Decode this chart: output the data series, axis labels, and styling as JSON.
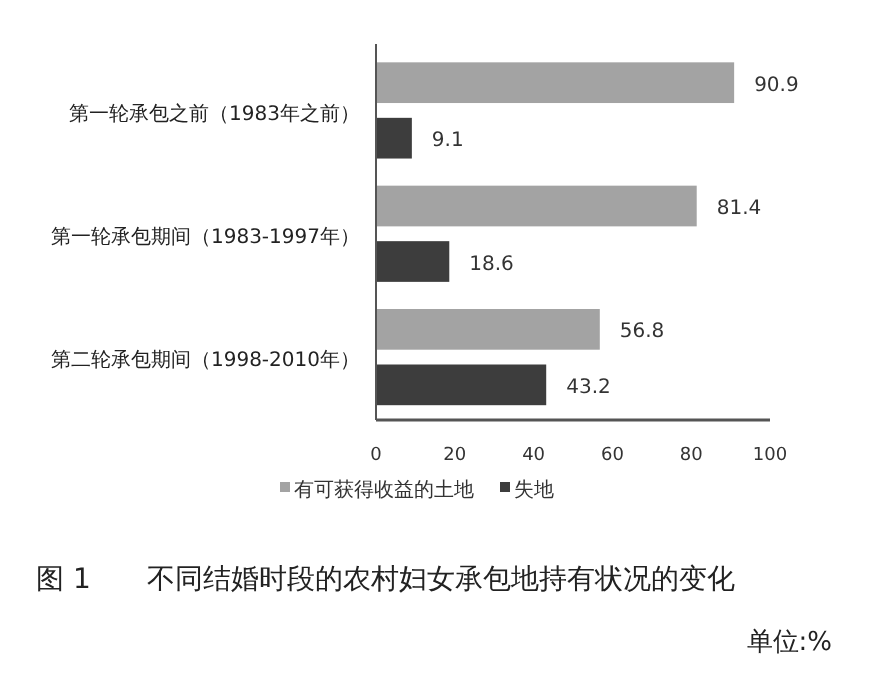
{
  "chart_data": {
    "type": "bar",
    "orientation": "horizontal",
    "title": "图 1　　不同结婚时段的农村妇女承包地持有状况的变化",
    "categories": [
      "第一轮承包之前（1983年之前）",
      "第一轮承包期间（1983-1997年）",
      "第二轮承包期间（1998-2010年）"
    ],
    "series": [
      {
        "name": "有可获得收益的土地",
        "color": "#a3a3a3",
        "values": [
          90.9,
          81.4,
          56.8
        ]
      },
      {
        "name": "失地",
        "color": "#3d3d3d",
        "values": [
          9.1,
          18.6,
          43.2
        ]
      }
    ],
    "xlim": [
      0,
      100
    ],
    "xticks": [
      0,
      20,
      40,
      60,
      80,
      100
    ],
    "data_labels": true,
    "grid": false,
    "legend": "bottom",
    "annotations": [
      "单位:%"
    ]
  }
}
